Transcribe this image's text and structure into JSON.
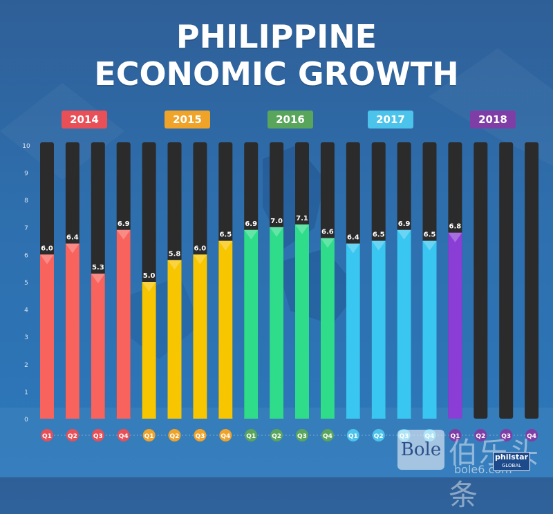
{
  "title_line1": "PHILIPPINE",
  "title_line2": "ECONOMIC GROWTH",
  "years": [
    {
      "label": "2014",
      "color": "#e84f57"
    },
    {
      "label": "2015",
      "color": "#f0a329"
    },
    {
      "label": "2016",
      "color": "#5aa55c"
    },
    {
      "label": "2017",
      "color": "#4cc3ea"
    },
    {
      "label": "2018",
      "color": "#7f3ea5"
    }
  ],
  "chart_data": {
    "type": "bar",
    "ylim": [
      0,
      10
    ],
    "yticks": [
      "0",
      "1",
      "2",
      "3",
      "4",
      "5",
      "6",
      "7",
      "8",
      "9",
      "10"
    ],
    "categories": [
      "Q1",
      "Q2",
      "Q3",
      "Q4",
      "Q1",
      "Q2",
      "Q3",
      "Q4",
      "Q1",
      "Q2",
      "Q3",
      "Q4",
      "Q1",
      "Q2",
      "Q3",
      "Q4",
      "Q1",
      "Q2",
      "Q3",
      "Q4"
    ],
    "values": [
      6.0,
      6.4,
      5.3,
      6.9,
      5.0,
      5.8,
      6.0,
      6.5,
      6.9,
      7.0,
      7.1,
      6.6,
      6.4,
      6.5,
      6.9,
      6.5,
      6.8,
      null,
      null,
      null
    ],
    "value_labels": [
      "6.0",
      "6.4",
      "5.3",
      "6.9",
      "5.0",
      "5.8",
      "6.0",
      "6.5",
      "6.9",
      "7.0",
      "7.1",
      "6.6",
      "6.4",
      "6.5",
      "6.9",
      "6.5",
      "6.8",
      "",
      "",
      ""
    ],
    "bar_colors": [
      "#f9635d",
      "#f9635d",
      "#f9635d",
      "#f9635d",
      "#f7c600",
      "#f7c600",
      "#f7c600",
      "#f7c600",
      "#2fdc8a",
      "#2fdc8a",
      "#2fdc8a",
      "#2fdc8a",
      "#39c6f0",
      "#39c6f0",
      "#39c6f0",
      "#39c6f0",
      "#8a3ed6",
      "#8a3ed6",
      "#8a3ed6",
      "#8a3ed6"
    ],
    "quarter_colors": [
      "#e84f57",
      "#e84f57",
      "#e84f57",
      "#e84f57",
      "#f0a329",
      "#f0a329",
      "#f0a329",
      "#f0a329",
      "#5aa55c",
      "#5aa55c",
      "#5aa55c",
      "#5aa55c",
      "#4cc3ea",
      "#4cc3ea",
      "#4cc3ea",
      "#4cc3ea",
      "#7f3ea5",
      "#7f3ea5",
      "#7f3ea5",
      "#7f3ea5"
    ],
    "track_color": "#2b2b2b"
  },
  "watermark": {
    "bole": "Bole",
    "cn": "伯乐头条",
    "url": "bole6.com",
    "philstar": "philstar",
    "philstar_sub": "GLOBAL"
  }
}
